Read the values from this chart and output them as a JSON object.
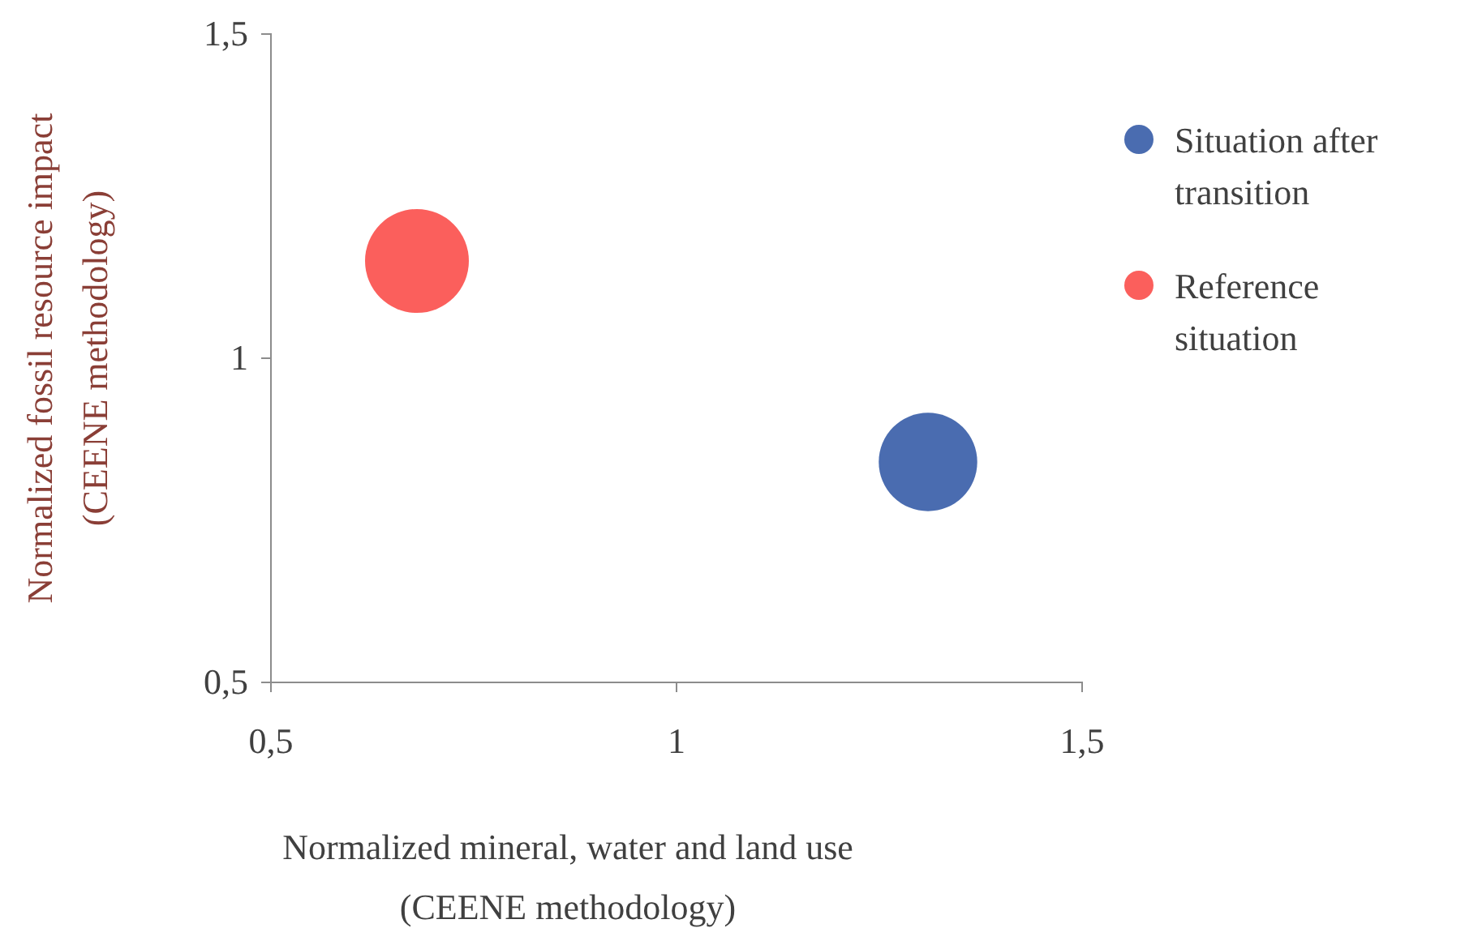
{
  "chart_data": {
    "type": "bubble",
    "xlabel": "Normalized mineral, water and land use\n(CEENE methodology)",
    "ylabel": "Normalized fossil resource impact\n(CEENE methodology)",
    "xlim": [
      0.5,
      1.5
    ],
    "xticks": [
      {
        "value": 0.5,
        "label": "0,5"
      },
      {
        "value": 1,
        "label": "1"
      },
      {
        "value": 1.5,
        "label": "1,5"
      }
    ],
    "ylim": [
      0.5,
      1.5
    ],
    "yticks": [
      {
        "value": 0.5,
        "label": "0,5"
      },
      {
        "value": 1,
        "label": "1"
      },
      {
        "value": 1.5,
        "label": "1,5"
      }
    ],
    "legend": "right",
    "series": [
      {
        "name": "Situation after transition",
        "color": "#4a6cb0",
        "x": [
          1.31
        ],
        "values": [
          0.84
        ],
        "sizes": [
          0.9
        ]
      },
      {
        "name": "Reference situation",
        "color": "#fb5f5c",
        "x": [
          0.68
        ],
        "values": [
          1.15
        ],
        "sizes": [
          1
        ]
      }
    ]
  }
}
